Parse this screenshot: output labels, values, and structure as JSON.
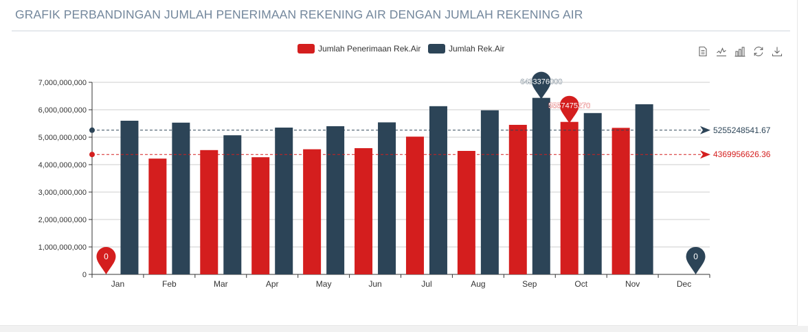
{
  "page": {
    "title": "GRAFIK PERBANDINGAN JUMLAH PENERIMAAN REKENING AIR DENGAN JUMLAH REKENING AIR"
  },
  "toolbox": {
    "icons": [
      "data-view-icon",
      "line-chart-icon",
      "bar-chart-icon",
      "restore-icon",
      "download-icon"
    ]
  },
  "chart_data": {
    "type": "bar",
    "categories": [
      "Jan",
      "Feb",
      "Mar",
      "Apr",
      "May",
      "Jun",
      "Jul",
      "Aug",
      "Sep",
      "Oct",
      "Nov",
      "Dec"
    ],
    "ylim": [
      0,
      7000000000
    ],
    "yticks": [
      0,
      1000000000,
      2000000000,
      3000000000,
      4000000000,
      5000000000,
      6000000000,
      7000000000
    ],
    "ytick_labels": [
      "0",
      "1,000,000,000",
      "2,000,000,000",
      "3,000,000,000",
      "4,000,000,000",
      "5,000,000,000",
      "6,000,000,000",
      "7,000,000,000"
    ],
    "grid": true,
    "legend_position": "top-center",
    "series": [
      {
        "name": "Jumlah Penerimaan Rek.Air",
        "color": "#d41e1e",
        "values": [
          0,
          4220000000,
          4530000000,
          4270000000,
          4560000000,
          4600000000,
          5020000000,
          4500000000,
          5450000000,
          5557475270,
          5340000000,
          null
        ],
        "max_label": "5557475270",
        "min_label": "0",
        "average": 4369956626.36,
        "average_label": "4369956626.36"
      },
      {
        "name": "Jumlah Rek.Air",
        "color": "#2c4457",
        "values": [
          5600000000,
          5530000000,
          5070000000,
          5350000000,
          5400000000,
          5540000000,
          6130000000,
          5980000000,
          6433376000,
          5880000000,
          6200000000,
          0
        ],
        "max_label": "6433376000",
        "min_label": "0",
        "average": 5255248541.67,
        "average_label": "5255248541.67"
      }
    ]
  }
}
